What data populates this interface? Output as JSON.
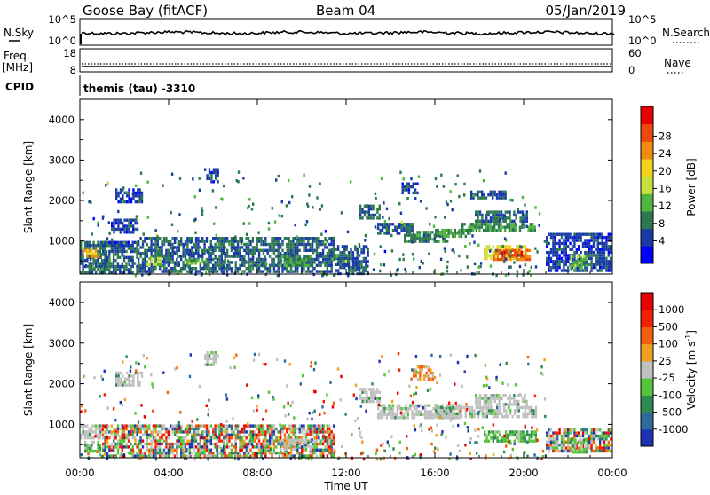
{
  "header": {
    "station": "Goose Bay (fitACF)",
    "beam": "Beam 04",
    "date": "05/Jan/2019"
  },
  "panels": {
    "nsky_label": "N.Sky",
    "nsearch_label": "N.Search",
    "freq_label_line1": "Freq.",
    "freq_label_line2": "[MHz]",
    "nave_label": "Nave",
    "cpid_label": "CPID",
    "cpid_text": "themis (tau) -3310",
    "log_hi": "10^5",
    "log_lo": "10^0",
    "freq_hi": "18",
    "freq_lo": "8",
    "nave_hi": "60",
    "nave_lo": "0"
  },
  "chart_data": [
    {
      "type": "heatmap",
      "name": "power",
      "xlabel": "",
      "ylabel": "Slant Range [km]",
      "x_range_hours": [
        0,
        24
      ],
      "y_range_km": [
        180,
        4500
      ],
      "y_ticks": [
        "1000",
        "2000",
        "3000",
        "4000"
      ],
      "colorbar_label": "Power [dB]",
      "colorbar_ticks": [
        "4",
        "8",
        "12",
        "16",
        "20",
        "24",
        "28"
      ],
      "colorbar_range": [
        0,
        32
      ],
      "colorbar_colors": [
        "#0000ff",
        "#1a3aa8",
        "#2d7850",
        "#4fb540",
        "#c8e03c",
        "#f2d21e",
        "#f08a10",
        "#ec4a0a",
        "#e80000"
      ],
      "regions": [
        {
          "t": [
            0.0,
            1.2
          ],
          "r": [
            200,
            1000
          ],
          "value": 9
        },
        {
          "t": [
            0.1,
            0.9
          ],
          "r": [
            580,
            800
          ],
          "value": 24
        },
        {
          "t": [
            0.9,
            2.6
          ],
          "r": [
            180,
            1000
          ],
          "value": 8
        },
        {
          "t": [
            1.0,
            2.2
          ],
          "r": [
            850,
            1000
          ],
          "value": 6
        },
        {
          "t": [
            1.4,
            2.6
          ],
          "r": [
            1150,
            1550
          ],
          "value": 6
        },
        {
          "t": [
            1.6,
            2.8
          ],
          "r": [
            1900,
            2300
          ],
          "value": 6
        },
        {
          "t": [
            2.6,
            6.5
          ],
          "r": [
            180,
            1100
          ],
          "value": 8
        },
        {
          "t": [
            3.0,
            3.7
          ],
          "r": [
            350,
            600
          ],
          "value": 16
        },
        {
          "t": [
            4.8,
            5.6
          ],
          "r": [
            400,
            560
          ],
          "value": 14
        },
        {
          "t": [
            5.6,
            6.3
          ],
          "r": [
            2400,
            2800
          ],
          "value": 6
        },
        {
          "t": [
            6.5,
            11.5
          ],
          "r": [
            180,
            1100
          ],
          "value": 8
        },
        {
          "t": [
            9.0,
            10.4
          ],
          "r": [
            350,
            650
          ],
          "value": 12
        },
        {
          "t": [
            11.5,
            13.0
          ],
          "r": [
            180,
            900
          ],
          "value": 7
        },
        {
          "t": [
            12.6,
            13.6
          ],
          "r": [
            1500,
            1900
          ],
          "value": 8
        },
        {
          "t": [
            13.4,
            15.0
          ],
          "r": [
            1150,
            1450
          ],
          "value": 8
        },
        {
          "t": [
            14.6,
            16.6
          ],
          "r": [
            950,
            1250
          ],
          "value": 10
        },
        {
          "t": [
            16.0,
            17.6
          ],
          "r": [
            1100,
            1300
          ],
          "value": 12
        },
        {
          "t": [
            17.2,
            20.6
          ],
          "r": [
            1200,
            1450
          ],
          "value": 11
        },
        {
          "t": [
            17.8,
            20.2
          ],
          "r": [
            1450,
            1750
          ],
          "value": 9
        },
        {
          "t": [
            18.2,
            20.2
          ],
          "r": [
            500,
            900
          ],
          "value": 20
        },
        {
          "t": [
            18.6,
            20.3
          ],
          "r": [
            520,
            800
          ],
          "value": 28
        },
        {
          "t": [
            19.0,
            20.0
          ],
          "r": [
            600,
            760
          ],
          "value": 30
        },
        {
          "t": [
            17.6,
            19.2
          ],
          "r": [
            2000,
            2250
          ],
          "value": 7
        },
        {
          "t": [
            14.5,
            15.4
          ],
          "r": [
            2150,
            2450
          ],
          "value": 6
        },
        {
          "t": [
            21.0,
            24.0
          ],
          "r": [
            200,
            1200
          ],
          "value": 6
        },
        {
          "t": [
            22.1,
            22.9
          ],
          "r": [
            300,
            650
          ],
          "value": 14
        }
      ]
    },
    {
      "type": "heatmap",
      "name": "velocity",
      "xlabel": "Time UT",
      "ylabel": "Slant Range [km]",
      "x_range_hours": [
        0,
        24
      ],
      "x_ticks": [
        "00:00",
        "04:00",
        "08:00",
        "12:00",
        "16:00",
        "20:00",
        "00:00"
      ],
      "y_range_km": [
        180,
        4500
      ],
      "y_ticks": [
        "1000",
        "2000",
        "3000",
        "4000"
      ],
      "colorbar_label": "Velocity [m s-1]",
      "colorbar_ticks": [
        "1000",
        "500",
        "100",
        "25",
        "-25",
        "-100",
        "-500",
        "-1000"
      ],
      "colorbar_colors": [
        "#1e32b4",
        "#2d6a9e",
        "#2e8a50",
        "#56c43a",
        "#c0c0c0",
        "#f0a020",
        "#f06010",
        "#f02000",
        "#e80000"
      ],
      "regions": [
        {
          "t": [
            0.0,
            1.2
          ],
          "r": [
            600,
            1000
          ],
          "cls": "gray"
        },
        {
          "t": [
            0.2,
            1.0
          ],
          "r": [
            300,
            600
          ],
          "cls": "green"
        },
        {
          "t": [
            1.0,
            2.6
          ],
          "r": [
            200,
            1000
          ],
          "cls": "mixed"
        },
        {
          "t": [
            1.6,
            2.8
          ],
          "r": [
            1900,
            2300
          ],
          "cls": "gray"
        },
        {
          "t": [
            2.6,
            6.5
          ],
          "r": [
            180,
            1000
          ],
          "cls": "mixed"
        },
        {
          "t": [
            5.6,
            6.3
          ],
          "r": [
            2400,
            2800
          ],
          "cls": "gray"
        },
        {
          "t": [
            6.5,
            11.5
          ],
          "r": [
            180,
            1000
          ],
          "cls": "mixed"
        },
        {
          "t": [
            9.0,
            10.4
          ],
          "r": [
            350,
            650
          ],
          "cls": "gray"
        },
        {
          "t": [
            12.6,
            13.6
          ],
          "r": [
            1500,
            1900
          ],
          "cls": "gray"
        },
        {
          "t": [
            13.4,
            17.2
          ],
          "r": [
            1100,
            1500
          ],
          "cls": "gray"
        },
        {
          "t": [
            16.0,
            20.6
          ],
          "r": [
            1150,
            1450
          ],
          "cls": "gray"
        },
        {
          "t": [
            17.8,
            20.2
          ],
          "r": [
            1450,
            1750
          ],
          "cls": "gray"
        },
        {
          "t": [
            18.2,
            20.6
          ],
          "r": [
            550,
            850
          ],
          "cls": "green"
        },
        {
          "t": [
            15.0,
            16.0
          ],
          "r": [
            2050,
            2450
          ],
          "cls": "orange"
        },
        {
          "t": [
            21.0,
            24.0
          ],
          "r": [
            300,
            900
          ],
          "cls": "mixed"
        },
        {
          "t": [
            22.1,
            22.9
          ],
          "r": [
            300,
            650
          ],
          "cls": "green"
        }
      ]
    }
  ]
}
